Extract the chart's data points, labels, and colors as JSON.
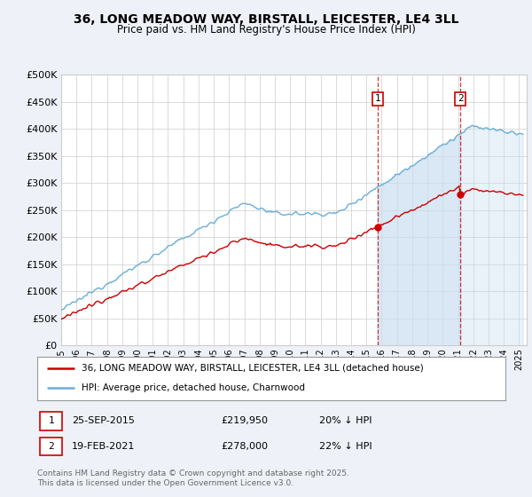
{
  "title": "36, LONG MEADOW WAY, BIRSTALL, LEICESTER, LE4 3LL",
  "subtitle": "Price paid vs. HM Land Registry's House Price Index (HPI)",
  "ytick_vals": [
    0,
    50000,
    100000,
    150000,
    200000,
    250000,
    300000,
    350000,
    400000,
    450000,
    500000
  ],
  "hpi_color": "#6baed6",
  "price_color": "#cc0000",
  "marker1_date_str": "25-SEP-2015",
  "marker1_price": 219950,
  "marker1_note": "20% ↓ HPI",
  "marker1_year": 2015.73,
  "marker2_date_str": "19-FEB-2021",
  "marker2_price": 278000,
  "marker2_note": "22% ↓ HPI",
  "marker2_year": 2021.13,
  "legend_line1": "36, LONG MEADOW WAY, BIRSTALL, LEICESTER, LE4 3LL (detached house)",
  "legend_line2": "HPI: Average price, detached house, Charnwood",
  "footer": "Contains HM Land Registry data © Crown copyright and database right 2025.\nThis data is licensed under the Open Government Licence v3.0.",
  "background_color": "#eef2f8",
  "plot_bg_color": "#ffffff",
  "fill_color": "#c9dff0",
  "grid_color": "#cccccc"
}
